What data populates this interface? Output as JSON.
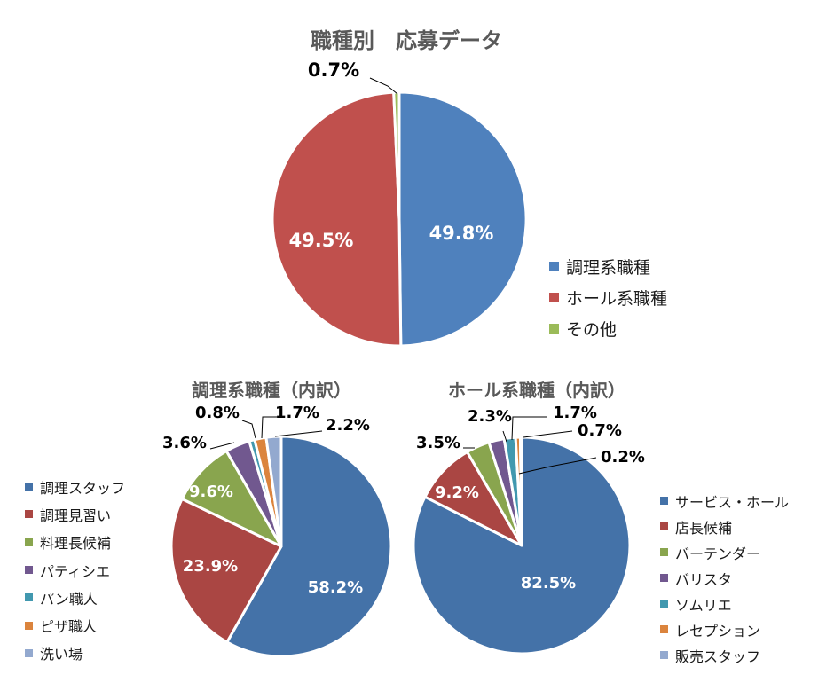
{
  "chart_data": [
    {
      "type": "pie",
      "title": "職種別　応募データ",
      "categories": [
        "調理系職種",
        "ホール系職種",
        "その他"
      ],
      "values": [
        49.8,
        49.5,
        0.7
      ],
      "data_labels": [
        "49.8%",
        "49.5%",
        "0.7%"
      ],
      "colors": [
        "#4f81bd",
        "#c0504d",
        "#9bbb59"
      ],
      "legend": "right"
    },
    {
      "type": "pie",
      "title": "調理系職種（内訳）",
      "categories": [
        "調理スタッフ",
        "調理見習い",
        "料理長候補",
        "パティシエ",
        "パン職人",
        "ピザ職人",
        "洗い場"
      ],
      "values": [
        58.2,
        23.9,
        9.6,
        3.6,
        0.8,
        1.7,
        2.2
      ],
      "data_labels": [
        "58.2%",
        "23.9%",
        "9.6%",
        "3.6%",
        "0.8%",
        "1.7%",
        "2.2%"
      ],
      "colors": [
        "#4472a8",
        "#aa4643",
        "#89a54e",
        "#71588f",
        "#4198af",
        "#db843d",
        "#93a9cf"
      ],
      "legend": "left"
    },
    {
      "type": "pie",
      "title": "ホール系職種（内訳）",
      "categories": [
        "サービス・ホール",
        "店長候補",
        "バーテンダー",
        "バリスタ",
        "ソムリエ",
        "レセプション",
        "販売スタッフ"
      ],
      "values": [
        82.5,
        9.2,
        3.5,
        2.3,
        1.7,
        0.7,
        0.2
      ],
      "data_labels": [
        "82.5%",
        "9.2%",
        "3.5%",
        "2.3%",
        "1.7%",
        "0.7%",
        "0.2%"
      ],
      "colors": [
        "#4472a8",
        "#aa4643",
        "#89a54e",
        "#71588f",
        "#4198af",
        "#db843d",
        "#93a9cf"
      ],
      "legend": "right"
    }
  ]
}
